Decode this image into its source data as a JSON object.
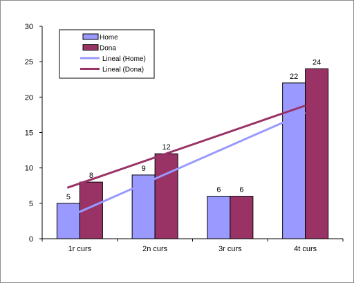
{
  "chart_data": {
    "type": "bar",
    "categories": [
      "1r curs",
      "2n curs",
      "3r curs",
      "4t curs"
    ],
    "series": [
      {
        "name": "Home",
        "values": [
          5,
          9,
          6,
          22
        ],
        "color": "#9999ff"
      },
      {
        "name": "Dona",
        "values": [
          8,
          12,
          6,
          24
        ],
        "color": "#993366"
      }
    ],
    "trendlines": [
      {
        "name": "Lineal (Home)",
        "values": [
          3.2,
          7.4,
          11.7,
          17.8
        ],
        "color": "#9999ff"
      },
      {
        "name": "Lineal (Dona)",
        "values": [
          7.2,
          10.3,
          14.7,
          18.8
        ],
        "color": "#993366"
      }
    ],
    "legend": [
      "Home",
      "Dona",
      "Lineal (Home)",
      "Lineal (Dona)"
    ],
    "legend_position": "top-left",
    "ylim": [
      0,
      30
    ],
    "yticks": [
      0,
      5,
      10,
      15,
      20,
      25,
      30
    ],
    "grid": false,
    "title": "",
    "xlabel": "",
    "ylabel": ""
  }
}
